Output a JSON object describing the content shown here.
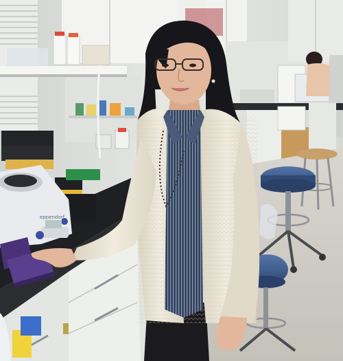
{
  "photo": {
    "scene": "laboratory",
    "subject": "woman-in-lab",
    "palette": {
      "wall": "#e4e6e2",
      "cabinet": "#f1f2ee",
      "counter": "#1d1f22",
      "cardigan": "#ece6d6",
      "shirt": "#3b4a64",
      "hair": "#17161a",
      "skin": "#e3b79c",
      "floor": "#cfcdc6",
      "stool_seat": "#3f5d8c",
      "purple_box": "#5b3f8f"
    }
  },
  "centrifuge": {
    "brand": "eppendorf"
  }
}
